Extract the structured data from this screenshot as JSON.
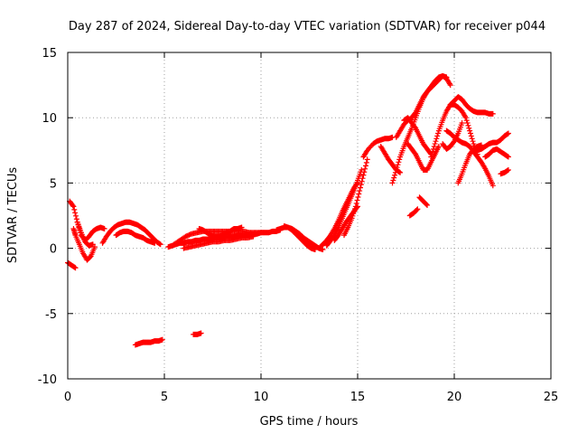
{
  "chart_data": {
    "type": "scatter",
    "title": "Day 287 of 2024, Sidereal Day-to-day VTEC variation (SDTVAR) for receiver p044",
    "xlabel": "GPS time / hours",
    "ylabel": "SDTVAR / TECUs",
    "xlim": [
      0,
      25
    ],
    "ylim": [
      -10,
      15
    ],
    "xticks": [
      0,
      5,
      10,
      15,
      20,
      25
    ],
    "yticks": [
      -10,
      -5,
      0,
      5,
      10,
      15
    ],
    "xtick_labels": [
      "0",
      "5",
      "10",
      "15",
      "20",
      "25"
    ],
    "ytick_labels": [
      "-10",
      "-5",
      "0",
      "5",
      "10",
      "15"
    ],
    "grid": true,
    "marker": "+",
    "color": "#ff0000",
    "series": [
      {
        "name": "t1",
        "x": [
          0.1,
          0.3,
          0.5,
          0.7,
          0.9,
          1.1,
          1.3,
          1.5,
          1.7,
          1.9
        ],
        "y": [
          3.6,
          3.2,
          2.0,
          1.0,
          0.6,
          0.9,
          1.3,
          1.5,
          1.6,
          1.5
        ]
      },
      {
        "name": "t2",
        "x": [
          0.3,
          0.4,
          0.6,
          0.8,
          1.0,
          1.2,
          1.4
        ],
        "y": [
          1.5,
          1.0,
          0.3,
          -0.4,
          -0.9,
          -0.6,
          0.1
        ]
      },
      {
        "name": "t3",
        "x": [
          0.0,
          0.2,
          0.4
        ],
        "y": [
          -1.1,
          -1.3,
          -1.5
        ]
      },
      {
        "name": "t4",
        "x": [
          0.5,
          0.7,
          0.9,
          1.1,
          1.3
        ],
        "y": [
          2.0,
          1.2,
          0.5,
          0.2,
          0.3
        ]
      },
      {
        "name": "t5",
        "x": [
          1.8,
          2.0,
          2.2,
          2.4,
          2.6,
          2.8,
          3.0,
          3.2,
          3.4,
          3.6,
          3.8,
          4.0,
          4.2,
          4.4,
          4.6,
          4.8
        ],
        "y": [
          0.4,
          0.9,
          1.3,
          1.6,
          1.8,
          1.9,
          2.0,
          2.0,
          1.9,
          1.8,
          1.6,
          1.4,
          1.1,
          0.8,
          0.5,
          0.3
        ]
      },
      {
        "name": "t6",
        "x": [
          2.5,
          2.7,
          2.9,
          3.1,
          3.3,
          3.5,
          3.7,
          3.9,
          4.1,
          4.3,
          4.5
        ],
        "y": [
          1.0,
          1.2,
          1.3,
          1.3,
          1.2,
          1.0,
          0.9,
          0.8,
          0.6,
          0.5,
          0.4
        ]
      },
      {
        "name": "t7",
        "x": [
          5.2,
          5.4,
          5.6,
          5.8,
          6.0,
          6.2,
          6.4,
          6.6,
          6.8,
          7.0,
          7.2,
          7.4,
          7.6,
          7.8,
          8.0,
          8.2,
          8.4,
          8.6,
          8.8,
          9.0,
          9.2,
          9.4,
          9.6,
          9.8,
          10.0,
          10.2,
          10.4,
          10.6,
          10.8,
          11.0
        ],
        "y": [
          0.1,
          0.2,
          0.3,
          0.4,
          0.4,
          0.5,
          0.5,
          0.6,
          0.6,
          0.7,
          0.7,
          0.7,
          0.8,
          0.8,
          0.8,
          0.9,
          0.9,
          0.9,
          1.0,
          1.0,
          1.0,
          1.1,
          1.1,
          1.1,
          1.2,
          1.2,
          1.2,
          1.3,
          1.3,
          1.4
        ]
      },
      {
        "name": "t8",
        "x": [
          5.5,
          5.8,
          6.1,
          6.4,
          6.7,
          7.0,
          7.3,
          7.6,
          7.9,
          8.2,
          8.5,
          8.8,
          9.1,
          9.4,
          9.7,
          10.0
        ],
        "y": [
          0.3,
          0.6,
          0.9,
          1.1,
          1.2,
          1.3,
          1.3,
          1.3,
          1.3,
          1.3,
          1.3,
          1.3,
          1.3,
          1.2,
          1.2,
          1.2
        ]
      },
      {
        "name": "t9",
        "x": [
          6.0,
          6.3,
          6.6,
          6.9,
          7.2,
          7.5,
          7.8,
          8.1,
          8.4,
          8.7,
          9.0,
          9.3,
          9.6
        ],
        "y": [
          0.0,
          0.1,
          0.2,
          0.3,
          0.4,
          0.5,
          0.5,
          0.6,
          0.6,
          0.7,
          0.8,
          0.8,
          0.9
        ]
      },
      {
        "name": "t10",
        "x": [
          6.8,
          7.0,
          7.2,
          7.4,
          7.6,
          7.8,
          8.0,
          8.2,
          8.4,
          8.6,
          8.8,
          9.0
        ],
        "y": [
          1.5,
          1.4,
          1.2,
          1.0,
          0.9,
          0.9,
          1.0,
          1.2,
          1.3,
          1.5,
          1.5,
          1.6
        ]
      },
      {
        "name": "t11",
        "x": [
          10.8,
          11.0,
          11.2,
          11.4,
          11.6,
          11.8,
          12.0,
          12.2,
          12.4,
          12.6,
          12.8,
          13.0,
          13.2
        ],
        "y": [
          1.4,
          1.5,
          1.6,
          1.6,
          1.5,
          1.3,
          1.1,
          0.8,
          0.6,
          0.4,
          0.2,
          0.0,
          -0.1
        ]
      },
      {
        "name": "t12",
        "x": [
          11.2,
          11.4,
          11.6,
          11.8,
          12.0,
          12.2,
          12.4,
          12.6,
          12.8
        ],
        "y": [
          1.7,
          1.6,
          1.4,
          1.1,
          0.8,
          0.5,
          0.2,
          0.0,
          -0.1
        ]
      },
      {
        "name": "t13",
        "x": [
          13.0,
          13.2,
          13.4,
          13.6,
          13.8,
          14.0,
          14.2,
          14.4,
          14.6,
          14.8,
          15.0
        ],
        "y": [
          0.0,
          0.3,
          0.6,
          1.0,
          1.5,
          2.1,
          2.8,
          3.4,
          4.0,
          4.6,
          5.0
        ]
      },
      {
        "name": "t14",
        "x": [
          13.4,
          13.6,
          13.8,
          14.0,
          14.2,
          14.4,
          14.6,
          14.8,
          15.0,
          15.2
        ],
        "y": [
          0.2,
          0.6,
          1.0,
          1.6,
          2.3,
          3.0,
          3.7,
          4.4,
          5.2,
          6.0
        ]
      },
      {
        "name": "t15",
        "x": [
          13.8,
          14.0,
          14.2,
          14.4,
          14.6,
          14.8,
          15.0
        ],
        "y": [
          0.6,
          1.0,
          1.5,
          2.0,
          2.4,
          2.8,
          3.2
        ]
      },
      {
        "name": "t16",
        "x": [
          14.3,
          14.5,
          14.7,
          14.9,
          15.1,
          15.3,
          15.5
        ],
        "y": [
          1.0,
          1.6,
          2.3,
          3.2,
          4.4,
          5.6,
          6.8
        ]
      },
      {
        "name": "t17",
        "x": [
          3.5,
          3.7,
          3.9,
          4.1,
          4.3,
          4.5,
          4.7,
          4.9
        ],
        "y": [
          -7.4,
          -7.3,
          -7.2,
          -7.2,
          -7.2,
          -7.1,
          -7.1,
          -7.0
        ]
      },
      {
        "name": "t18",
        "x": [
          6.5,
          6.7,
          6.9
        ],
        "y": [
          -6.6,
          -6.6,
          -6.5
        ]
      },
      {
        "name": "t19",
        "x": [
          15.3,
          15.5,
          15.8,
          16.0,
          16.2,
          16.4,
          16.6,
          16.8
        ],
        "y": [
          7.0,
          7.5,
          8.0,
          8.2,
          8.3,
          8.4,
          8.4,
          8.5
        ]
      },
      {
        "name": "t20",
        "x": [
          16.2,
          16.4,
          16.6,
          16.8,
          17.0,
          17.2
        ],
        "y": [
          7.8,
          7.3,
          6.8,
          6.4,
          6.0,
          5.8
        ]
      },
      {
        "name": "t21",
        "x": [
          16.8,
          17.0,
          17.2,
          17.4,
          17.6,
          17.8,
          18.0,
          18.2,
          18.4,
          18.6,
          18.8,
          19.0,
          19.2,
          19.4,
          19.6,
          19.8
        ],
        "y": [
          5.0,
          6.0,
          7.0,
          7.8,
          8.5,
          9.2,
          10.0,
          10.8,
          11.5,
          12.0,
          12.4,
          12.8,
          13.1,
          13.2,
          13.0,
          12.5
        ]
      },
      {
        "name": "t22",
        "x": [
          17.0,
          17.2,
          17.4,
          17.6,
          17.8,
          18.0,
          18.2,
          18.4,
          18.6,
          18.8,
          19.0,
          19.2,
          19.4,
          19.6
        ],
        "y": [
          8.5,
          9.0,
          9.5,
          9.8,
          10.0,
          10.4,
          11.0,
          11.6,
          12.0,
          12.3,
          12.6,
          12.9,
          13.2,
          13.1
        ]
      },
      {
        "name": "t23",
        "x": [
          17.6,
          17.8,
          18.0,
          18.2,
          18.4,
          18.6,
          18.8,
          19.0,
          19.2
        ],
        "y": [
          8.0,
          7.6,
          7.2,
          6.6,
          6.0,
          6.0,
          6.6,
          7.2,
          7.8
        ]
      },
      {
        "name": "t24",
        "x": [
          17.4,
          17.6,
          17.8,
          18.0,
          18.2,
          18.4,
          18.6,
          18.8
        ],
        "y": [
          9.8,
          10.0,
          9.6,
          9.2,
          8.6,
          8.0,
          7.6,
          7.2
        ]
      },
      {
        "name": "t25",
        "x": [
          17.7,
          17.9,
          18.1
        ],
        "y": [
          2.5,
          2.7,
          3.0
        ]
      },
      {
        "name": "t26",
        "x": [
          18.2,
          18.4,
          18.6
        ],
        "y": [
          3.9,
          3.6,
          3.3
        ]
      },
      {
        "name": "t27",
        "x": [
          18.8,
          19.0,
          19.2,
          19.4,
          19.6,
          19.8,
          20.0,
          20.2,
          20.4,
          20.6,
          20.8,
          21.0,
          21.2
        ],
        "y": [
          7.0,
          8.0,
          9.0,
          9.8,
          10.5,
          11.0,
          11.0,
          10.8,
          10.5,
          10.0,
          9.0,
          8.0,
          7.2
        ]
      },
      {
        "name": "t28",
        "x": [
          19.8,
          20.0,
          20.2,
          20.4,
          20.6,
          20.8,
          21.0,
          21.2,
          21.4,
          21.6,
          21.8,
          22.0
        ],
        "y": [
          11.0,
          11.3,
          11.6,
          11.4,
          11.0,
          10.7,
          10.5,
          10.4,
          10.4,
          10.4,
          10.3,
          10.3
        ]
      },
      {
        "name": "t29",
        "x": [
          19.6,
          19.8,
          20.0,
          20.2,
          20.4,
          20.6,
          20.8,
          21.0,
          21.2,
          21.4,
          21.6,
          21.8,
          22.0
        ],
        "y": [
          9.0,
          8.8,
          8.5,
          8.3,
          8.1,
          8.0,
          7.8,
          7.4,
          7.0,
          6.6,
          6.1,
          5.5,
          4.8
        ]
      },
      {
        "name": "t30",
        "x": [
          19.4,
          19.6,
          19.8,
          20.0,
          20.2,
          20.4
        ],
        "y": [
          8.0,
          7.6,
          7.8,
          8.2,
          8.8,
          9.6
        ]
      },
      {
        "name": "t31",
        "x": [
          20.2,
          20.4,
          20.6,
          20.8,
          21.0,
          21.2,
          21.4
        ],
        "y": [
          5.0,
          5.7,
          6.5,
          7.2,
          7.6,
          7.8,
          7.9
        ]
      },
      {
        "name": "t32",
        "x": [
          21.2,
          21.4,
          21.6,
          21.8,
          22.0,
          22.2,
          22.4,
          22.6,
          22.8
        ],
        "y": [
          7.5,
          7.6,
          7.8,
          8.0,
          8.1,
          8.1,
          8.3,
          8.6,
          8.8
        ]
      },
      {
        "name": "t33",
        "x": [
          21.6,
          21.8,
          22.0,
          22.2,
          22.4,
          22.6,
          22.8
        ],
        "y": [
          7.0,
          7.2,
          7.5,
          7.6,
          7.4,
          7.2,
          7.0
        ]
      },
      {
        "name": "t34",
        "x": [
          22.4,
          22.6,
          22.8
        ],
        "y": [
          5.7,
          5.8,
          6.0
        ]
      }
    ]
  }
}
